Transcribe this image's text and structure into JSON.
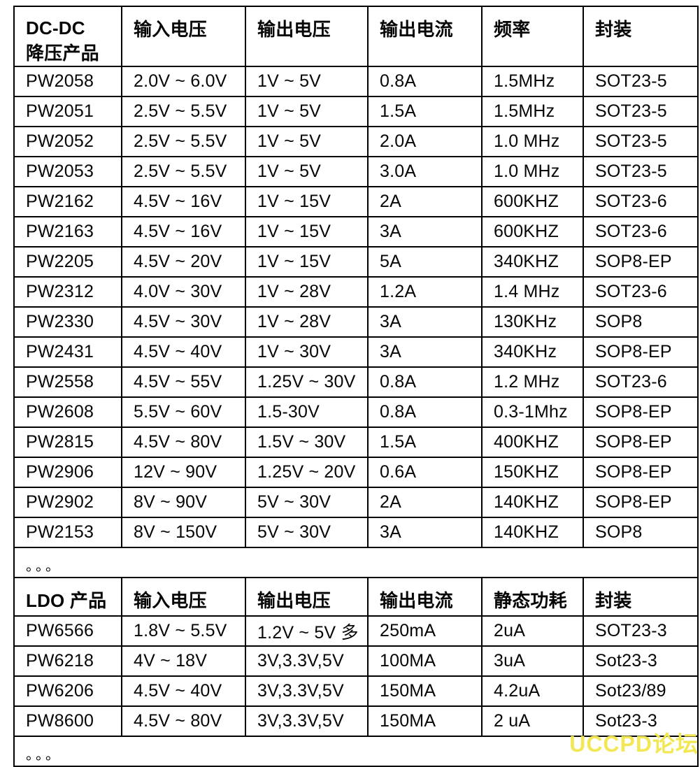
{
  "colors": {
    "border": "#000000",
    "text": "#060606",
    "watermark": "#F2E755",
    "background": "#ffffff"
  },
  "dcdc": {
    "header": {
      "col1_line1": "DC-DC",
      "col1_line2": "降压产品",
      "col2": "输入电压",
      "col3": "输出电压",
      "col4": "输出电流",
      "col5": "频率",
      "col6": "封装"
    },
    "rows": [
      [
        "PW2058",
        "2.0V ~ 6.0V",
        "1V ~ 5V",
        "0.8A",
        "1.5MHz",
        "SOT23-5"
      ],
      [
        "PW2051",
        "2.5V ~ 5.5V",
        "1V ~ 5V",
        "1.5A",
        "1.5MHz",
        "SOT23-5"
      ],
      [
        "PW2052",
        "2.5V ~ 5.5V",
        "1V ~ 5V",
        "2.0A",
        "1.0 MHz",
        "SOT23-5"
      ],
      [
        "PW2053",
        "2.5V ~ 5.5V",
        "1V ~ 5V",
        "3.0A",
        "1.0 MHz",
        "SOT23-5"
      ],
      [
        "PW2162",
        "4.5V ~ 16V",
        "1V ~ 15V",
        "2A",
        "600KHZ",
        "SOT23-6"
      ],
      [
        "PW2163",
        "4.5V ~ 16V",
        "1V ~ 15V",
        "3A",
        "600KHZ",
        "SOT23-6"
      ],
      [
        "PW2205",
        "4.5V ~ 20V",
        "1V ~ 15V",
        "5A",
        "340KHZ",
        "SOP8-EP"
      ],
      [
        "PW2312",
        "4.0V ~ 30V",
        "1V ~ 28V",
        "1.2A",
        "1.4 MHz",
        "SOT23-6"
      ],
      [
        "PW2330",
        "4.5V ~ 30V",
        "1V ~ 28V",
        "3A",
        "130KHz",
        "SOP8"
      ],
      [
        "PW2431",
        "4.5V ~ 40V",
        "1V ~ 30V",
        "3A",
        "340KHz",
        "SOP8-EP"
      ],
      [
        "PW2558",
        "4.5V ~ 55V",
        "1.25V ~ 30V",
        "0.8A",
        "1.2 MHz",
        "SOT23-6"
      ],
      [
        "PW2608",
        "5.5V ~ 60V",
        "1.5-30V",
        "0.8A",
        "0.3-1Mhz",
        "SOP8-EP"
      ],
      [
        "PW2815",
        "4.5V ~ 80V",
        "1.5V ~ 30V",
        "1.5A",
        "400KHZ",
        "SOP8-EP"
      ],
      [
        "PW2906",
        "12V ~ 90V",
        "1.25V ~ 20V",
        "0.6A",
        "150KHZ",
        "SOP8-EP"
      ],
      [
        "PW2902",
        "8V ~ 90V",
        "5V ~ 30V",
        "2A",
        "140KHZ",
        "SOP8-EP"
      ],
      [
        "PW2153",
        "8V ~ 150V",
        "5V ~ 30V",
        "3A",
        "140KHZ",
        "SOP8"
      ]
    ],
    "ellipsis": "。。。"
  },
  "ldo": {
    "header": {
      "col1": "LDO 产品",
      "col2": "输入电压",
      "col3": "输出电压",
      "col4": "输出电流",
      "col5": "静态功耗",
      "col6": "封装"
    },
    "rows": [
      [
        "PW6566",
        "1.8V ~ 5.5V",
        "1.2V ~ 5V 多",
        "250mA",
        "2uA",
        "SOT23-3"
      ],
      [
        "PW6218",
        "4V ~ 18V",
        "3V,3.3V,5V",
        "100MA",
        "3uA",
        "Sot23-3"
      ],
      [
        "PW6206",
        "4.5V ~ 40V",
        "3V,3.3V,5V",
        "150MA",
        "4.2uA",
        "Sot23/89"
      ],
      [
        "PW8600",
        "4.5V ~ 80V",
        "3V,3.3V,5V",
        "150MA",
        "2 uA",
        "Sot23-3"
      ]
    ],
    "ellipsis": "。。。"
  },
  "watermark": {
    "text": "UCCPD论坛"
  }
}
